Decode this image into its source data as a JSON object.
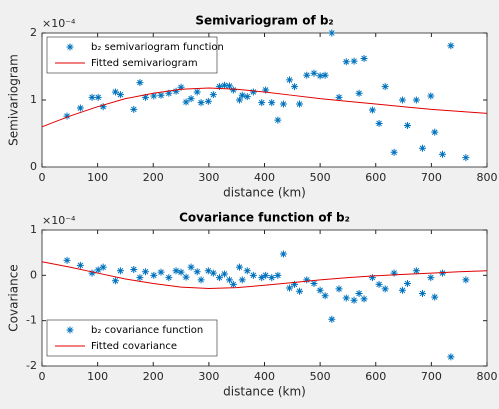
{
  "chart_data": [
    {
      "type": "scatter",
      "title": "Semivariogram of b₂",
      "xlabel": "distance (km)",
      "ylabel": "Semivariogram",
      "y_multiplier": "×10⁻⁴",
      "xlim": [
        0,
        800
      ],
      "xticks": [
        0,
        100,
        200,
        300,
        400,
        500,
        600,
        700,
        800
      ],
      "ylim": [
        0,
        2
      ],
      "yticks": [
        0,
        1,
        2
      ],
      "grid": false,
      "legend": "upper left",
      "series": [
        {
          "name": "b₂ semivariogram function",
          "type": "scatter",
          "color": "#0072bd",
          "x": [
            45,
            69,
            90,
            101,
            110,
            132,
            141,
            165,
            176,
            186,
            201,
            214,
            228,
            241,
            250,
            259,
            268,
            279,
            286,
            299,
            308,
            319,
            328,
            337,
            344,
            355,
            360,
            369,
            380,
            395,
            402,
            413,
            424,
            434,
            445,
            454,
            463,
            476,
            489,
            500,
            509,
            521,
            534,
            547,
            561,
            570,
            579,
            594,
            606,
            617,
            633,
            648,
            657,
            673,
            684,
            699,
            706,
            720,
            735,
            762
          ],
          "values": [
            0.76,
            0.88,
            1.04,
            1.04,
            0.9,
            1.12,
            1.08,
            0.86,
            1.26,
            1.04,
            1.06,
            1.07,
            1.1,
            1.13,
            1.19,
            0.97,
            1.02,
            1.12,
            0.96,
            0.98,
            1.08,
            1.2,
            1.22,
            1.21,
            1.15,
            1.0,
            1.07,
            1.05,
            1.12,
            0.96,
            1.15,
            0.96,
            0.7,
            0.94,
            1.3,
            1.2,
            0.94,
            1.37,
            1.4,
            1.36,
            1.37,
            2.0,
            1.04,
            1.57,
            1.58,
            1.1,
            1.62,
            0.85,
            0.65,
            1.2,
            0.22,
            1.0,
            0.62,
            1.0,
            0.28,
            1.06,
            0.52,
            0.19,
            1.81,
            0.14
          ]
        },
        {
          "name": "Fitted semivariogram",
          "type": "line",
          "color": "#e00000",
          "x": [
            0,
            50,
            100,
            150,
            200,
            250,
            300,
            350,
            400,
            450,
            500,
            550,
            600,
            650,
            700,
            750,
            800
          ],
          "values": [
            0.6,
            0.76,
            0.9,
            1.02,
            1.1,
            1.16,
            1.18,
            1.16,
            1.12,
            1.07,
            1.02,
            0.98,
            0.94,
            0.9,
            0.86,
            0.83,
            0.8
          ]
        }
      ]
    },
    {
      "type": "scatter",
      "title": "Covariance function of b₂",
      "xlabel": "distance (km)",
      "ylabel": "Covariance",
      "y_multiplier": "×10⁻⁴",
      "xlim": [
        0,
        800
      ],
      "xticks": [
        0,
        100,
        200,
        300,
        400,
        500,
        600,
        700,
        800
      ],
      "ylim": [
        -2,
        1
      ],
      "yticks": [
        -2,
        -1,
        0,
        1
      ],
      "grid": false,
      "legend": "lower left",
      "series": [
        {
          "name": "b₂ covariance function",
          "type": "scatter",
          "color": "#0072bd",
          "x": [
            45,
            69,
            90,
            101,
            110,
            132,
            141,
            165,
            176,
            186,
            201,
            214,
            228,
            241,
            250,
            259,
            268,
            279,
            286,
            299,
            308,
            319,
            328,
            337,
            344,
            355,
            360,
            369,
            380,
            395,
            402,
            413,
            424,
            434,
            445,
            454,
            463,
            476,
            489,
            500,
            509,
            521,
            534,
            547,
            561,
            570,
            579,
            594,
            606,
            617,
            633,
            648,
            657,
            673,
            684,
            699,
            706,
            720,
            735,
            762
          ],
          "values": [
            0.33,
            0.22,
            0.05,
            0.12,
            0.18,
            -0.12,
            0.1,
            0.13,
            -0.05,
            0.08,
            0.0,
            0.07,
            -0.05,
            0.1,
            0.07,
            -0.04,
            0.18,
            0.08,
            -0.1,
            0.1,
            0.05,
            -0.05,
            0.03,
            -0.1,
            -0.2,
            0.18,
            -0.1,
            0.1,
            0.0,
            -0.05,
            0.0,
            -0.05,
            0.0,
            0.47,
            -0.28,
            -0.2,
            -0.35,
            -0.1,
            -0.18,
            -0.33,
            -0.45,
            -0.97,
            -0.3,
            -0.5,
            -0.55,
            -0.4,
            -0.52,
            -0.05,
            -0.2,
            -0.3,
            0.05,
            -0.33,
            -0.18,
            0.1,
            -0.4,
            -0.05,
            -0.48,
            0.05,
            -1.8,
            -0.1
          ]
        },
        {
          "name": "Fitted covariance",
          "type": "line",
          "color": "#e00000",
          "x": [
            0,
            50,
            100,
            150,
            200,
            250,
            300,
            350,
            400,
            450,
            500,
            550,
            600,
            650,
            700,
            750,
            800
          ],
          "values": [
            0.3,
            0.18,
            0.05,
            -0.08,
            -0.18,
            -0.26,
            -0.29,
            -0.27,
            -0.22,
            -0.16,
            -0.1,
            -0.05,
            -0.01,
            0.02,
            0.05,
            0.08,
            0.1
          ]
        }
      ]
    }
  ]
}
